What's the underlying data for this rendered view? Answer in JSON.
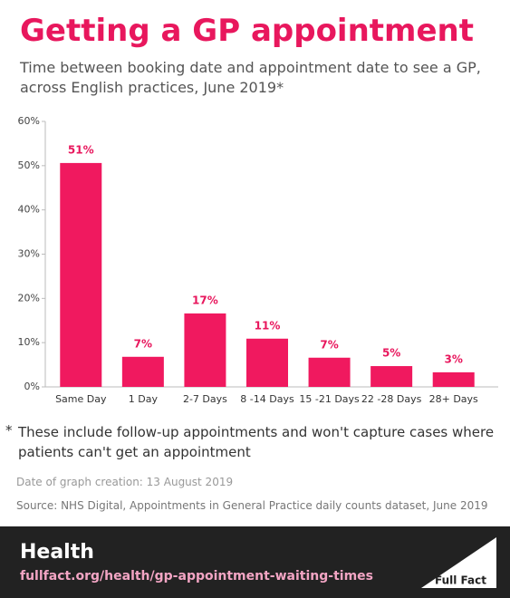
{
  "chart_data": {
    "type": "bar",
    "title": "Getting a GP appointment",
    "subtitle": "Time between booking date and appointment date to see a GP, across English practices, June 2019*",
    "categories": [
      "Same Day",
      "1 Day",
      "2-7 Days",
      "8 -14 Days",
      "15 -21 Days",
      "22 -28 Days",
      "28+ Days"
    ],
    "values": [
      50.6,
      6.8,
      16.6,
      10.9,
      6.6,
      4.7,
      3.3
    ],
    "value_labels": [
      "51%",
      "7%",
      "17%",
      "11%",
      "7%",
      "5%",
      "3%"
    ],
    "color": "#f0195f",
    "ylim": [
      0,
      60
    ],
    "yticks": [
      {
        "value": 0,
        "label": "0%"
      },
      {
        "value": 10,
        "label": "10%"
      },
      {
        "value": 20,
        "label": "20%"
      },
      {
        "value": 30,
        "label": "30%"
      },
      {
        "value": 40,
        "label": "40%"
      },
      {
        "value": 50,
        "label": "50%"
      },
      {
        "value": 60,
        "label": "60%"
      }
    ],
    "grid": false
  },
  "footnote_marker": "*",
  "footnote": "These include follow-up appointments and won't capture cases where patients can't get an appointment",
  "date_note": "Date of graph creation: 13 August 2019",
  "source": "Source: NHS Digital, Appointments in General Practice daily counts dataset, June 2019",
  "footer": {
    "section": "Health",
    "url": "fullfact.org/health/gp-appointment-waiting-times",
    "logo": "Full Fact"
  }
}
